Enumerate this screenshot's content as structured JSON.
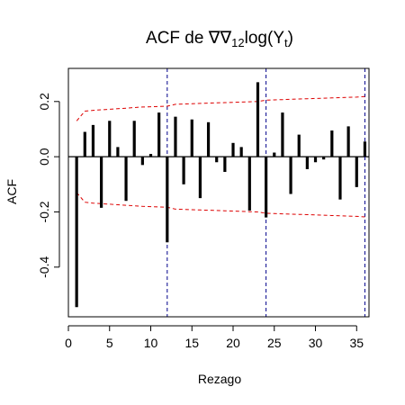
{
  "chart_data": {
    "type": "bar",
    "title": {
      "prefix": "ACF de ",
      "nabla1": "∇",
      "nabla2": "∇",
      "sub12": "12",
      "log": "log(Y",
      "subt": "t",
      "close": ")"
    },
    "xlabel": "Rezago",
    "ylabel": "ACF",
    "xlim": [
      0,
      36.5
    ],
    "ylim": [
      -0.58,
      0.32
    ],
    "x_ticks": [
      0,
      5,
      10,
      15,
      20,
      25,
      30,
      35
    ],
    "y_ticks": [
      -0.4,
      -0.2,
      0.0,
      0.2
    ],
    "y_tick_labels": [
      "-0.4",
      "-0.2",
      "0.0",
      "0.2"
    ],
    "lags": [
      1,
      2,
      3,
      4,
      5,
      6,
      7,
      8,
      9,
      10,
      11,
      12,
      13,
      14,
      15,
      16,
      17,
      18,
      19,
      20,
      21,
      22,
      23,
      24,
      25,
      26,
      27,
      28,
      29,
      30,
      31,
      32,
      33,
      34,
      35,
      36
    ],
    "values": [
      -0.545,
      0.09,
      0.115,
      -0.185,
      0.13,
      0.035,
      -0.16,
      0.13,
      -0.03,
      0.01,
      0.16,
      -0.31,
      0.145,
      -0.1,
      0.135,
      -0.15,
      0.125,
      -0.02,
      -0.055,
      0.05,
      0.035,
      -0.195,
      0.27,
      -0.22,
      0.015,
      0.16,
      -0.135,
      0.08,
      -0.045,
      -0.02,
      -0.01,
      0.095,
      -0.155,
      0.11,
      -0.11,
      0.055
    ],
    "confidence_upper": [
      0.13,
      0.165,
      0.168,
      0.17,
      0.172,
      0.174,
      0.176,
      0.178,
      0.18,
      0.181,
      0.182,
      0.183,
      0.19,
      0.191,
      0.192,
      0.193,
      0.194,
      0.195,
      0.196,
      0.197,
      0.198,
      0.199,
      0.2,
      0.205,
      0.206,
      0.207,
      0.208,
      0.209,
      0.21,
      0.211,
      0.212,
      0.213,
      0.214,
      0.215,
      0.216,
      0.218
    ],
    "seasonal_lags": [
      12,
      24,
      36
    ],
    "colors": {
      "bars": "#000000",
      "confidence": "#dd0000",
      "seasonal": "#00008b",
      "zero_line": "#000000"
    },
    "grid": false,
    "legend": "none"
  }
}
